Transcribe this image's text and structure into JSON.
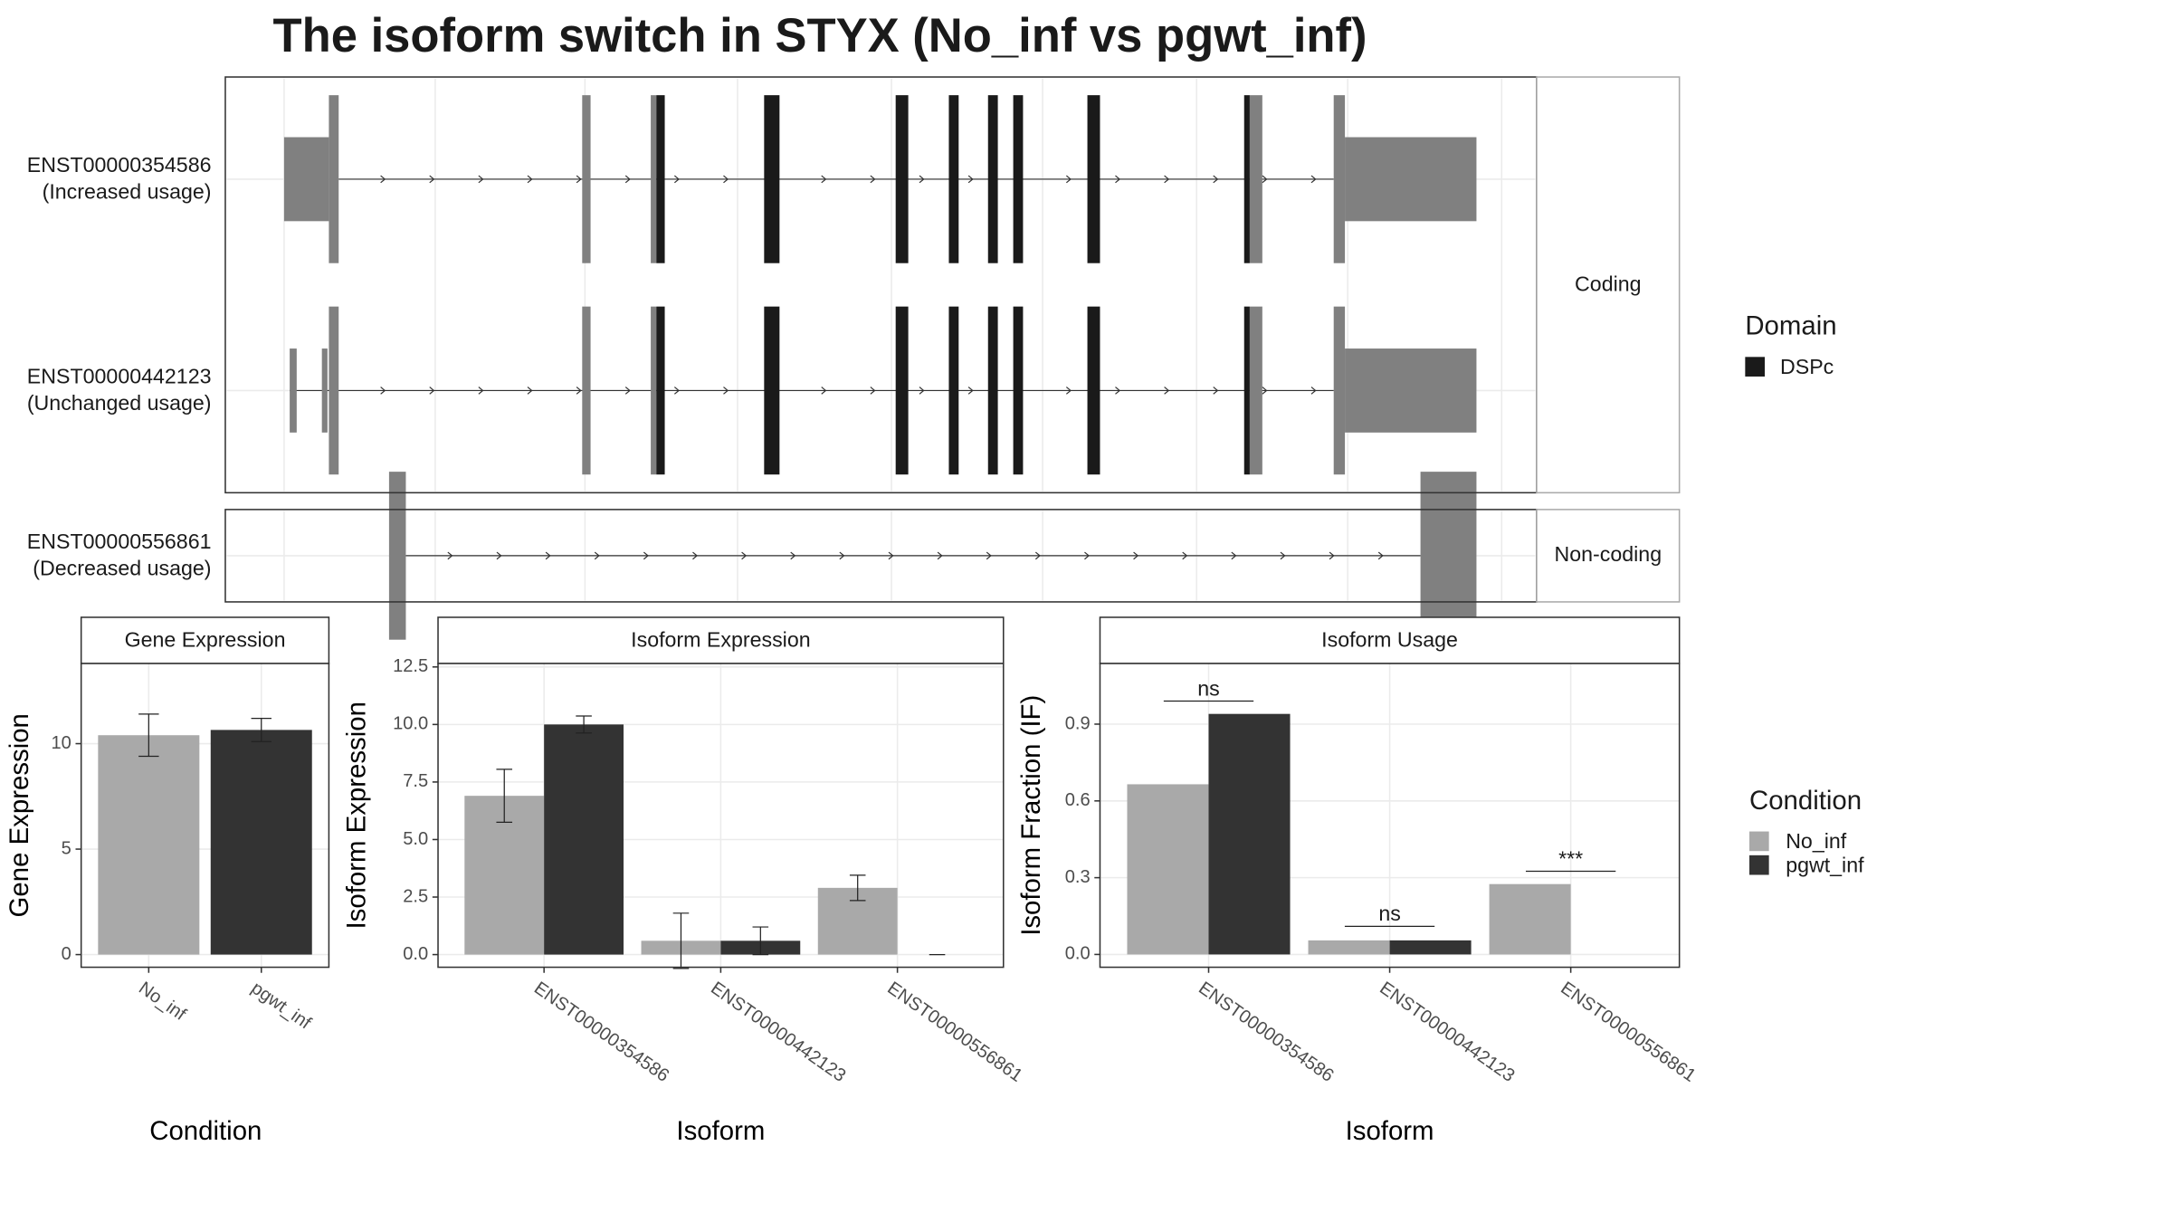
{
  "title": "The isoform switch in STYX (No_inf vs pgwt_inf)",
  "transcripts": {
    "rows": [
      {
        "id": "ENST00000354586",
        "usage": "(Increased usage)"
      },
      {
        "id": "ENST00000442123",
        "usage": "(Unchanged usage)"
      },
      {
        "id": "ENST00000556861",
        "usage": "(Decreased usage)"
      }
    ],
    "strip_coding": "Coding",
    "strip_noncoding": "Non-coding",
    "legend_title": "Domain",
    "domain_name": "DSPc",
    "domain_color": "#1a1a1a"
  },
  "condition_legend_title": "Condition",
  "chart_data": [
    {
      "type": "bar",
      "title": "Gene Expression",
      "x_label": "Condition",
      "y_label": "Gene Expression",
      "categories": [
        "No_inf",
        "pgwt_inf"
      ],
      "values": [
        10.4,
        10.65
      ],
      "errors": [
        1.0,
        0.55
      ],
      "colors": [
        "#a9a9a9",
        "#333333"
      ],
      "ylim": [
        -0.6,
        13.8
      ],
      "yticks": [
        0,
        5,
        10
      ],
      "grid": true
    },
    {
      "type": "grouped_bar",
      "title": "Isoform Expression",
      "x_label": "Isoform",
      "y_label": "Isoform Expression",
      "categories": [
        "ENST00000354586",
        "ENST00000442123",
        "ENST00000556861"
      ],
      "series": [
        {
          "name": "No_inf",
          "color": "#a9a9a9",
          "values": [
            6.9,
            0.6,
            2.9
          ],
          "errors": [
            1.15,
            1.2,
            0.55
          ]
        },
        {
          "name": "pgwt_inf",
          "color": "#333333",
          "values": [
            10.0,
            0.6,
            0.0
          ],
          "errors": [
            0.37,
            0.6,
            0.0
          ]
        }
      ],
      "ylim": [
        -0.55,
        12.65
      ],
      "yticks": [
        {
          "value": 0,
          "label": "0.0"
        },
        {
          "value": 2.5,
          "label": "2.5"
        },
        {
          "value": 5,
          "label": "5.0"
        },
        {
          "value": 7.5,
          "label": "7.5"
        },
        {
          "value": 10,
          "label": "10.0"
        },
        {
          "value": 12.5,
          "label": "12.5"
        }
      ],
      "grid": true
    },
    {
      "type": "grouped_bar",
      "title": "Isoform Usage",
      "x_label": "Isoform",
      "y_label": "Isoform Fraction (IF)",
      "categories": [
        "ENST00000354586",
        "ENST00000442123",
        "ENST00000556861"
      ],
      "series": [
        {
          "name": "No_inf",
          "color": "#a9a9a9",
          "values": [
            0.665,
            0.055,
            0.275
          ]
        },
        {
          "name": "pgwt_inf",
          "color": "#333333",
          "values": [
            0.94,
            0.055,
            0.0
          ]
        }
      ],
      "significance": [
        {
          "label": "ns",
          "y": 0.99
        },
        {
          "label": "ns",
          "y": 0.11
        },
        {
          "label": "***",
          "y": 0.325
        }
      ],
      "ylim": [
        -0.05,
        1.137
      ],
      "yticks": [
        {
          "value": 0,
          "label": "0.0"
        },
        {
          "value": 0.3,
          "label": "0.3"
        },
        {
          "value": 0.6,
          "label": "0.6"
        },
        {
          "value": 0.9,
          "label": "0.9"
        }
      ],
      "grid": true
    }
  ]
}
